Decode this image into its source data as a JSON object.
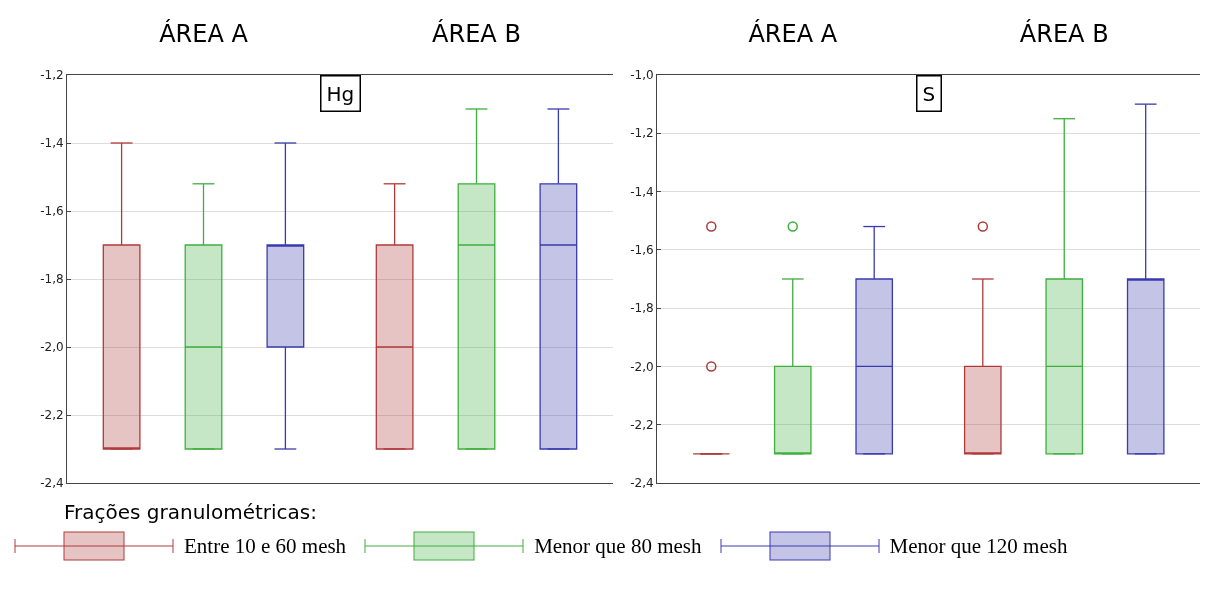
{
  "chart_data": [
    {
      "type": "box",
      "categories": [
        "ÁREA A",
        "ÁREA B"
      ],
      "annotations": [
        "Hg"
      ],
      "legend_title": "Frações granulométricas:",
      "legend": "bottom",
      "grid": "y",
      "ylim": [
        -2.4,
        -1.2
      ],
      "yticks": [
        {
          "value": -2.4,
          "label": "-2,4"
        },
        {
          "value": -2.2,
          "label": "-2,2"
        },
        {
          "value": -2.0,
          "label": "-2,0"
        },
        {
          "value": -1.8,
          "label": "-1,8"
        },
        {
          "value": -1.6,
          "label": "-1,6"
        },
        {
          "value": -1.4,
          "label": "-1,4"
        },
        {
          "value": -1.2,
          "label": "-1,2"
        }
      ],
      "series": [
        {
          "name": "Entre 10 e 60 mesh",
          "color": "#b03a3a",
          "boxes": [
            {
              "low": -2.3,
              "q1": -2.3,
              "median": -2.3,
              "q3": -1.7,
              "high": -1.4
            },
            {
              "low": -2.3,
              "q1": -2.3,
              "median": -2.0,
              "q3": -1.7,
              "high": -1.52
            }
          ]
        },
        {
          "name": "Menor que 80 mesh",
          "color": "#3fae3f",
          "boxes": [
            {
              "low": -2.3,
              "q1": -2.3,
              "median": -2.0,
              "q3": -1.7,
              "high": -1.52
            },
            {
              "low": -2.3,
              "q1": -2.3,
              "median": -1.7,
              "q3": -1.52,
              "high": -1.3
            }
          ]
        },
        {
          "name": "Menor que  120 mesh",
          "color": "#3a3ab0",
          "boxes": [
            {
              "low": -2.3,
              "q1": -2.0,
              "median": -1.7,
              "q3": -1.7,
              "high": -1.4
            },
            {
              "low": -2.3,
              "q1": -2.3,
              "median": -1.7,
              "q3": -1.52,
              "high": -1.3
            }
          ]
        }
      ]
    },
    {
      "type": "box",
      "categories": [
        "ÁREA A",
        "ÁREA B"
      ],
      "annotations": [
        "S"
      ],
      "grid": "y",
      "ylim": [
        -2.4,
        -1.0
      ],
      "yticks": [
        {
          "value": -2.4,
          "label": "-2,4"
        },
        {
          "value": -2.2,
          "label": "-2,2"
        },
        {
          "value": -2.0,
          "label": "-2,0"
        },
        {
          "value": -1.8,
          "label": "-1,8"
        },
        {
          "value": -1.6,
          "label": "-1,6"
        },
        {
          "value": -1.4,
          "label": "-1,4"
        },
        {
          "value": -1.2,
          "label": "-1,2"
        },
        {
          "value": -1.0,
          "label": "-1,0"
        }
      ],
      "series": [
        {
          "color": "#b03a3a",
          "boxes": [
            {
              "low": -2.3,
              "q1": -2.3,
              "median": -2.3,
              "q3": -2.3,
              "high": -2.3,
              "outliers": [
                -2.0,
                -1.52
              ]
            },
            {
              "low": -2.3,
              "q1": -2.3,
              "median": -2.3,
              "q3": -2.0,
              "high": -1.7,
              "outliers": [
                -1.52
              ]
            }
          ]
        },
        {
          "color": "#3fae3f",
          "boxes": [
            {
              "low": -2.3,
              "q1": -2.3,
              "median": -2.3,
              "q3": -2.0,
              "high": -1.7,
              "outliers": [
                -1.52
              ]
            },
            {
              "low": -2.3,
              "q1": -2.3,
              "median": -2.0,
              "q3": -1.7,
              "high": -1.15
            }
          ]
        },
        {
          "color": "#3a3ab0",
          "boxes": [
            {
              "low": -2.3,
              "q1": -2.3,
              "median": -2.0,
              "q3": -1.7,
              "high": -1.52
            },
            {
              "low": -2.3,
              "q1": -2.3,
              "median": -1.7,
              "q3": -1.7,
              "high": -1.1
            }
          ]
        }
      ]
    }
  ]
}
